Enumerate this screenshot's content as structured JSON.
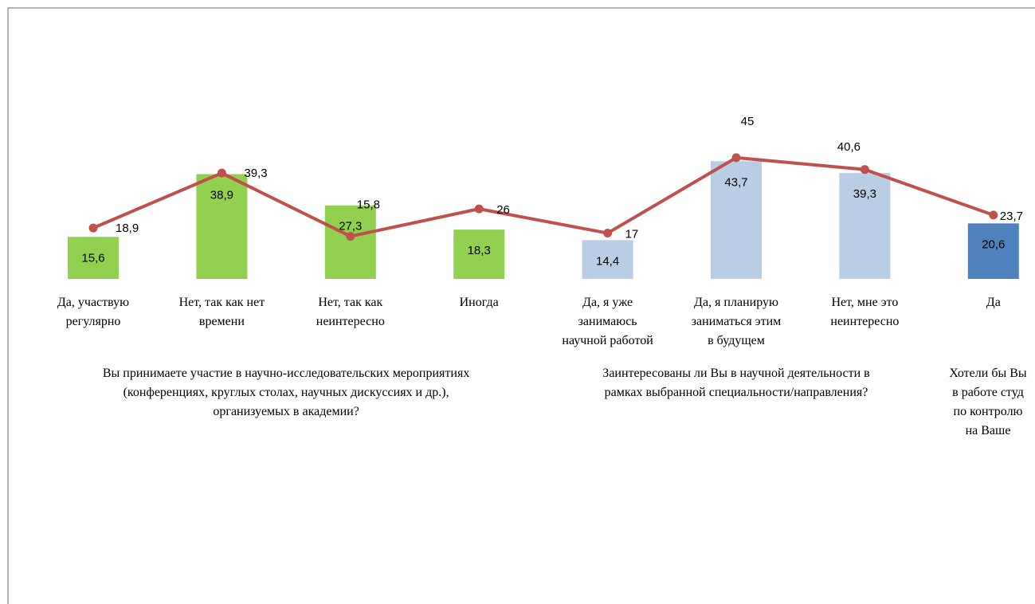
{
  "chart_data": {
    "type": "bar-line",
    "categories": [
      "Да, участвую\nрегулярно",
      "Нет, так как нет\nвремени",
      "Нет, так как\nнеинтересно",
      "Иногда",
      "Да, я уже\nзанимаюсь\nнаучной работой",
      "Да, я планирую\nзаниматься этим\nв будущем",
      "Нет, мне это\nнеинтересно",
      "Да"
    ],
    "groups": [
      {
        "label": "Вы принимаете участие в научно-исследовательских мероприятиях\n(конференциях, круглых столах, научных дискуссиях и др.),\nорганизуемых в академии?",
        "start": 0,
        "end": 3
      },
      {
        "label": "Заинтересованы ли Вы в научной деятельности в\nрамках выбранной специальности/направления?",
        "start": 4,
        "end": 6
      },
      {
        "label": "Хотели бы Вы\nв работе студ\nпо контролю\nна Ваше",
        "start": 7,
        "end": 7
      }
    ],
    "series": [
      {
        "kind": "bar",
        "values": [
          15.6,
          38.9,
          27.3,
          18.3,
          14.4,
          43.7,
          39.3,
          20.6
        ],
        "colors": [
          "#92d050",
          "#92d050",
          "#92d050",
          "#92d050",
          "#b9cde5",
          "#b9cde5",
          "#b9cde5",
          "#4f81bd"
        ]
      },
      {
        "kind": "line",
        "color": "#c0504d",
        "values": [
          18.9,
          39.3,
          15.8,
          26,
          17,
          45,
          40.6,
          23.7
        ],
        "value_labels": [
          "18,9",
          "39,3",
          "15,8",
          "26",
          "17",
          "45",
          "40,6",
          "23,7"
        ]
      }
    ]
  }
}
